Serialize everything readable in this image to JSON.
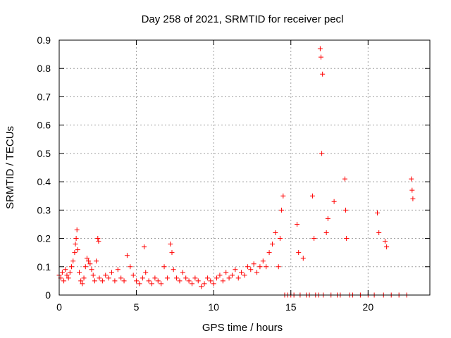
{
  "chart_data": {
    "type": "scatter",
    "title": "Day 258 of 2021, SRMTID for receiver pecl",
    "xlabel": "GPS time / hours",
    "ylabel": "SRMTID / TECUs",
    "xlim": [
      0,
      24
    ],
    "ylim": [
      0,
      0.9
    ],
    "xticks": [
      0,
      5,
      10,
      15,
      20
    ],
    "yticks": [
      0,
      0.1,
      0.2,
      0.3,
      0.4,
      0.5,
      0.6,
      0.7,
      0.8,
      0.9
    ],
    "grid": true,
    "marker": "+",
    "color": "#ff0000",
    "series": [
      {
        "name": "SRMTID",
        "points": [
          [
            0.0,
            0.07
          ],
          [
            0.1,
            0.06
          ],
          [
            0.2,
            0.08
          ],
          [
            0.3,
            0.05
          ],
          [
            0.4,
            0.09
          ],
          [
            0.5,
            0.07
          ],
          [
            0.6,
            0.06
          ],
          [
            0.7,
            0.08
          ],
          [
            0.8,
            0.1
          ],
          [
            0.9,
            0.12
          ],
          [
            1.0,
            0.15
          ],
          [
            1.05,
            0.18
          ],
          [
            1.1,
            0.2
          ],
          [
            1.15,
            0.23
          ],
          [
            1.2,
            0.16
          ],
          [
            1.3,
            0.08
          ],
          [
            1.4,
            0.05
          ],
          [
            1.5,
            0.04
          ],
          [
            1.6,
            0.06
          ],
          [
            1.7,
            0.1
          ],
          [
            1.8,
            0.13
          ],
          [
            1.9,
            0.12
          ],
          [
            2.0,
            0.11
          ],
          [
            2.1,
            0.09
          ],
          [
            2.2,
            0.07
          ],
          [
            2.3,
            0.05
          ],
          [
            2.4,
            0.12
          ],
          [
            2.5,
            0.2
          ],
          [
            2.55,
            0.19
          ],
          [
            2.6,
            0.06
          ],
          [
            2.8,
            0.05
          ],
          [
            3.0,
            0.07
          ],
          [
            3.2,
            0.06
          ],
          [
            3.4,
            0.08
          ],
          [
            3.6,
            0.05
          ],
          [
            3.8,
            0.09
          ],
          [
            4.0,
            0.06
          ],
          [
            4.2,
            0.05
          ],
          [
            4.4,
            0.14
          ],
          [
            4.6,
            0.1
          ],
          [
            4.8,
            0.07
          ],
          [
            5.0,
            0.05
          ],
          [
            5.2,
            0.04
          ],
          [
            5.4,
            0.06
          ],
          [
            5.5,
            0.17
          ],
          [
            5.6,
            0.08
          ],
          [
            5.8,
            0.05
          ],
          [
            6.0,
            0.04
          ],
          [
            6.2,
            0.06
          ],
          [
            6.4,
            0.05
          ],
          [
            6.6,
            0.04
          ],
          [
            6.8,
            0.1
          ],
          [
            7.0,
            0.06
          ],
          [
            7.2,
            0.18
          ],
          [
            7.3,
            0.15
          ],
          [
            7.4,
            0.09
          ],
          [
            7.6,
            0.06
          ],
          [
            7.8,
            0.05
          ],
          [
            8.0,
            0.08
          ],
          [
            8.2,
            0.06
          ],
          [
            8.4,
            0.05
          ],
          [
            8.6,
            0.04
          ],
          [
            8.8,
            0.06
          ],
          [
            9.0,
            0.05
          ],
          [
            9.2,
            0.03
          ],
          [
            9.4,
            0.04
          ],
          [
            9.6,
            0.06
          ],
          [
            9.8,
            0.05
          ],
          [
            10.0,
            0.04
          ],
          [
            10.2,
            0.06
          ],
          [
            10.4,
            0.07
          ],
          [
            10.6,
            0.05
          ],
          [
            10.8,
            0.08
          ],
          [
            11.0,
            0.06
          ],
          [
            11.2,
            0.07
          ],
          [
            11.4,
            0.09
          ],
          [
            11.6,
            0.06
          ],
          [
            11.8,
            0.08
          ],
          [
            12.0,
            0.07
          ],
          [
            12.2,
            0.1
          ],
          [
            12.4,
            0.09
          ],
          [
            12.6,
            0.11
          ],
          [
            12.8,
            0.08
          ],
          [
            13.0,
            0.1
          ],
          [
            13.2,
            0.12
          ],
          [
            13.4,
            0.1
          ],
          [
            13.6,
            0.15
          ],
          [
            13.8,
            0.18
          ],
          [
            14.0,
            0.22
          ],
          [
            14.2,
            0.1
          ],
          [
            14.3,
            0.2
          ],
          [
            14.4,
            0.3
          ],
          [
            14.5,
            0.35
          ],
          [
            14.6,
            0.0
          ],
          [
            14.8,
            0.0
          ],
          [
            15.0,
            0.0
          ],
          [
            15.2,
            0.0
          ],
          [
            15.4,
            0.25
          ],
          [
            15.5,
            0.15
          ],
          [
            15.6,
            0.0
          ],
          [
            15.8,
            0.13
          ],
          [
            16.0,
            0.0
          ],
          [
            16.2,
            0.0
          ],
          [
            16.4,
            0.35
          ],
          [
            16.5,
            0.2
          ],
          [
            16.6,
            0.0
          ],
          [
            16.8,
            0.0
          ],
          [
            16.9,
            0.87
          ],
          [
            16.95,
            0.84
          ],
          [
            17.0,
            0.5
          ],
          [
            17.05,
            0.78
          ],
          [
            17.1,
            0.0
          ],
          [
            17.3,
            0.22
          ],
          [
            17.4,
            0.27
          ],
          [
            17.6,
            0.0
          ],
          [
            17.8,
            0.33
          ],
          [
            18.0,
            0.0
          ],
          [
            18.2,
            0.0
          ],
          [
            18.5,
            0.41
          ],
          [
            18.55,
            0.3
          ],
          [
            18.6,
            0.2
          ],
          [
            18.8,
            0.0
          ],
          [
            19.0,
            0.0
          ],
          [
            19.5,
            0.0
          ],
          [
            20.0,
            0.0
          ],
          [
            20.4,
            0.0
          ],
          [
            20.6,
            0.29
          ],
          [
            20.7,
            0.22
          ],
          [
            21.0,
            0.0
          ],
          [
            21.1,
            0.19
          ],
          [
            21.2,
            0.17
          ],
          [
            21.5,
            0.0
          ],
          [
            22.0,
            0.0
          ],
          [
            22.5,
            0.0
          ],
          [
            22.8,
            0.41
          ],
          [
            22.85,
            0.37
          ],
          [
            22.9,
            0.34
          ]
        ]
      }
    ]
  }
}
